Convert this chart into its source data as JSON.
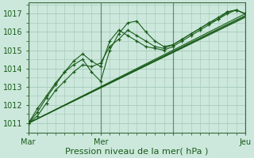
{
  "bg_color": "#cce8dc",
  "grid_color": "#aaccbb",
  "line_color": "#1a5c1a",
  "xlabel": "Pression niveau de la mer( hPa )",
  "xlabel_fontsize": 8,
  "tick_fontsize": 7,
  "xlim": [
    0,
    72
  ],
  "ylim": [
    1010.5,
    1017.6
  ],
  "yticks": [
    1011,
    1012,
    1013,
    1014,
    1015,
    1016,
    1017
  ],
  "xtick_positions": [
    0,
    24,
    48,
    72
  ],
  "xtick_labels": [
    "Mar",
    "Mer",
    "",
    "Jeu"
  ],
  "vline_positions": [
    0,
    24,
    48,
    72
  ],
  "smooth_series": [
    [
      [
        0,
        72
      ],
      [
        1011.0,
        1017.0
      ]
    ],
    [
      [
        0,
        72
      ],
      [
        1011.0,
        1016.9
      ]
    ],
    [
      [
        0,
        72
      ],
      [
        1011.0,
        1016.85
      ]
    ],
    [
      [
        0,
        72
      ],
      [
        1011.0,
        1016.8
      ]
    ]
  ],
  "wavy_series_x": [
    0,
    3,
    6,
    9,
    12,
    15,
    18,
    21,
    24,
    27,
    30,
    33,
    36,
    39,
    42,
    45,
    48,
    51,
    54,
    57,
    60,
    63,
    66,
    69,
    72
  ],
  "wavy_series": [
    [
      1011.0,
      1011.4,
      1012.1,
      1012.8,
      1013.3,
      1013.8,
      1014.2,
      1014.1,
      1014.3,
      1015.2,
      1015.6,
      1016.1,
      1015.8,
      1015.5,
      1015.2,
      1015.1,
      1015.3,
      1015.6,
      1015.9,
      1016.2,
      1016.5,
      1016.8,
      1017.1,
      1017.2,
      1017.0
    ],
    [
      1011.0,
      1011.6,
      1012.4,
      1013.1,
      1013.8,
      1014.4,
      1014.8,
      1014.4,
      1014.1,
      1015.5,
      1016.1,
      1015.8,
      1015.5,
      1015.2,
      1015.1,
      1015.0,
      1015.2,
      1015.5,
      1015.8,
      1016.1,
      1016.4,
      1016.7,
      1017.0,
      1017.2,
      1017.0
    ],
    [
      1011.0,
      1011.8,
      1012.5,
      1013.2,
      1013.8,
      1014.2,
      1014.5,
      1013.8,
      1013.3,
      1015.0,
      1015.9,
      1016.5,
      1016.6,
      1016.0,
      1015.5,
      1015.2,
      1015.3,
      1015.6,
      1015.9,
      1016.2,
      1016.5,
      1016.7,
      1017.1,
      1017.2,
      1017.0
    ]
  ]
}
